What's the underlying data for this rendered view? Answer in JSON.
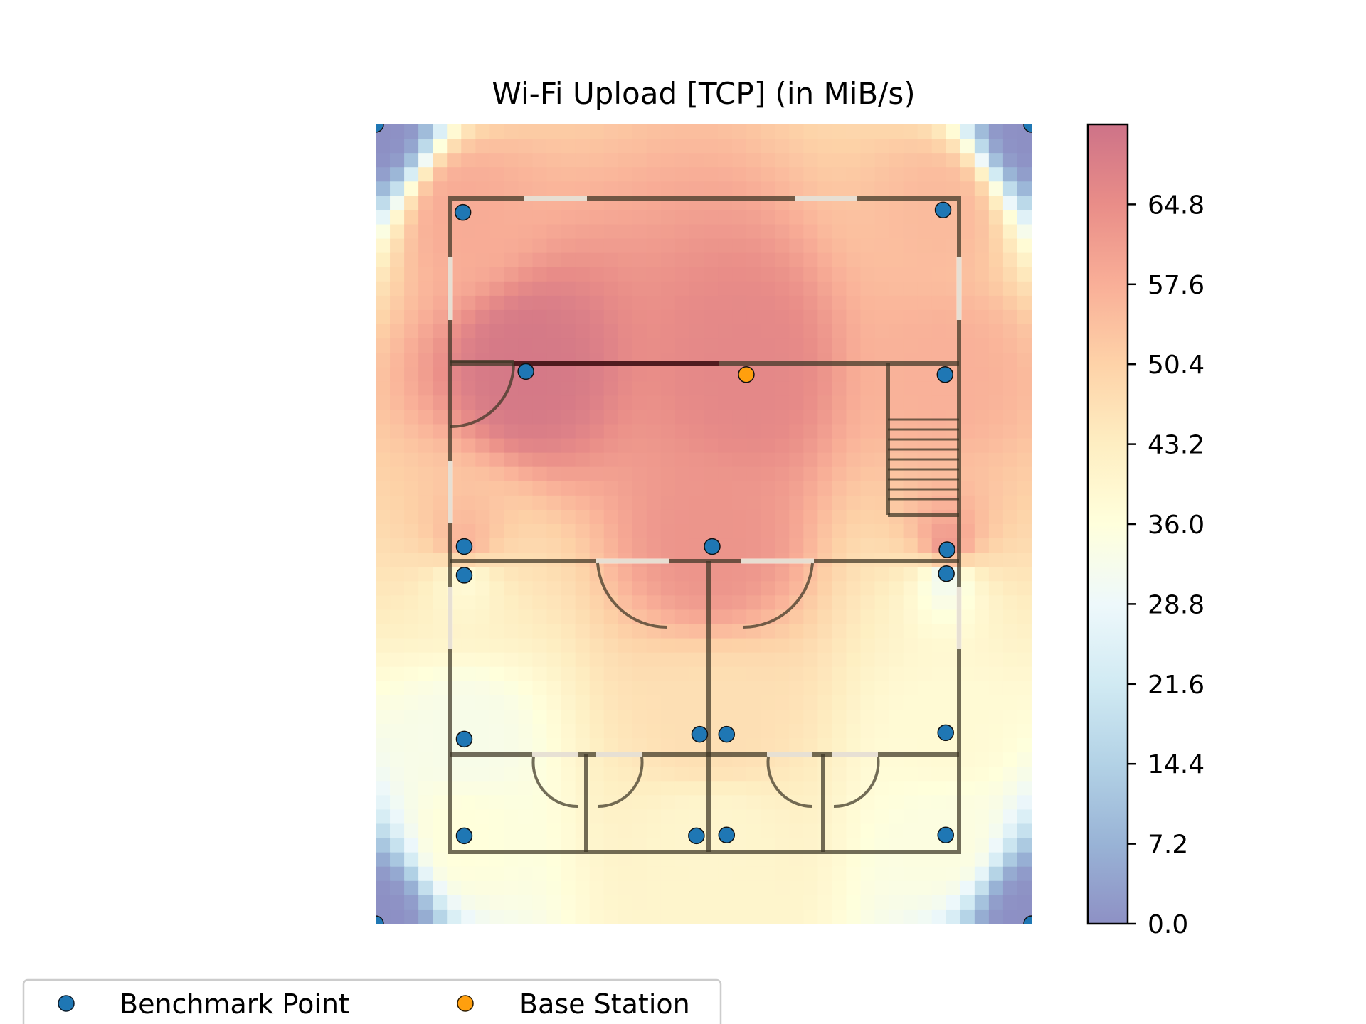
{
  "chart_data": {
    "type": "heatmap",
    "title": "Wi-Fi Upload [TCP] (in MiB/s)",
    "xlabel": "",
    "ylabel": "",
    "grid": false,
    "colormap": "RdYlBu_r",
    "colorbar": {
      "min": 0.0,
      "max": 72.0,
      "ticks": [
        0.0,
        7.2,
        14.4,
        21.6,
        28.8,
        36.0,
        43.2,
        50.4,
        57.6,
        64.8
      ],
      "tick_labels": [
        "0.0",
        "7.2",
        "14.4",
        "21.6",
        "28.8",
        "36.0",
        "43.2",
        "50.4",
        "57.6",
        "64.8"
      ],
      "colors": [
        "#313695",
        "#4575b4",
        "#74add1",
        "#abd9e9",
        "#e0f3f8",
        "#ffffbf",
        "#fee090",
        "#fdae61",
        "#f46d43",
        "#d73027",
        "#a50026"
      ]
    },
    "legend": {
      "placement": "lower-left outside",
      "entries": [
        {
          "label": "Benchmark Point",
          "color": "#1f77b4"
        },
        {
          "label": "Base Station",
          "color": "#ff9f0e"
        }
      ]
    },
    "series": [
      {
        "name": "Benchmark Point",
        "marker_color": "#1f77b4",
        "points": [
          {
            "x": 0,
            "y": 0,
            "value": 0
          },
          {
            "x": 100,
            "y": 0,
            "value": 0
          },
          {
            "x": 0,
            "y": 100,
            "value": 0
          },
          {
            "x": 100,
            "y": 100,
            "value": 0
          },
          {
            "x": 13.3,
            "y": 11.0,
            "value": 58
          },
          {
            "x": 86.5,
            "y": 10.7,
            "value": 55
          },
          {
            "x": 22.9,
            "y": 30.9,
            "value": 70
          },
          {
            "x": 86.8,
            "y": 31.3,
            "value": 57
          },
          {
            "x": 13.5,
            "y": 52.8,
            "value": 56
          },
          {
            "x": 51.3,
            "y": 52.8,
            "value": 63
          },
          {
            "x": 87.1,
            "y": 53.2,
            "value": 62
          },
          {
            "x": 13.5,
            "y": 56.4,
            "value": 38
          },
          {
            "x": 87.0,
            "y": 56.2,
            "value": 31
          },
          {
            "x": 13.5,
            "y": 76.9,
            "value": 33
          },
          {
            "x": 49.4,
            "y": 76.3,
            "value": 47
          },
          {
            "x": 53.5,
            "y": 76.3,
            "value": 47
          },
          {
            "x": 86.9,
            "y": 76.1,
            "value": 38
          },
          {
            "x": 13.5,
            "y": 89.0,
            "value": 36
          },
          {
            "x": 48.9,
            "y": 89.0,
            "value": 40
          },
          {
            "x": 53.5,
            "y": 88.9,
            "value": 40
          },
          {
            "x": 86.9,
            "y": 88.9,
            "value": 35
          }
        ]
      },
      {
        "name": "Base Station",
        "marker_color": "#ff9f0e",
        "points": [
          {
            "x": 56.5,
            "y": 31.3,
            "value": 66
          }
        ]
      }
    ]
  }
}
